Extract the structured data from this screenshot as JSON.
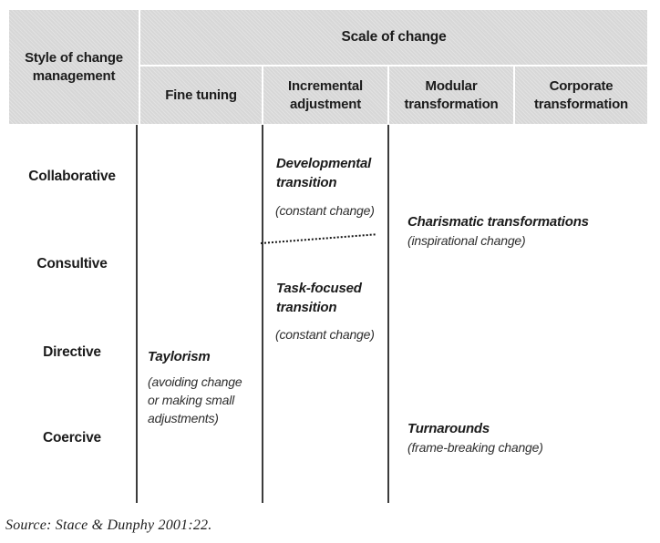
{
  "header": {
    "corner": "Style of change management",
    "scale": "Scale of change",
    "columns": [
      {
        "label": "Fine tuning"
      },
      {
        "label": "Incremental adjustment"
      },
      {
        "label": "Modular transformation"
      },
      {
        "label": "Corporate transformation"
      }
    ]
  },
  "row_labels": [
    {
      "label": "Collaborative"
    },
    {
      "label": "Consultive"
    },
    {
      "label": "Directive"
    },
    {
      "label": "Coercive"
    }
  ],
  "cells": {
    "developmental": {
      "title": "Developmental transition",
      "note": "(constant change)"
    },
    "task_focused": {
      "title": "Task-focused transition",
      "note": "(constant change)"
    },
    "charismatic": {
      "title": "Charismatic transformations",
      "note": "(inspirational change)"
    },
    "taylorism": {
      "title": "Taylorism",
      "note": "(avoiding change or making small adjustments)"
    },
    "turnarounds": {
      "title": "Turnarounds",
      "note": "(frame-breaking change)"
    }
  },
  "source": "Source: Stace & Dunphy 2001:22.",
  "colors": {
    "header_bg": "#d7d7d7",
    "body_line": "#3c3c3c",
    "text": "#1b1b1b"
  }
}
